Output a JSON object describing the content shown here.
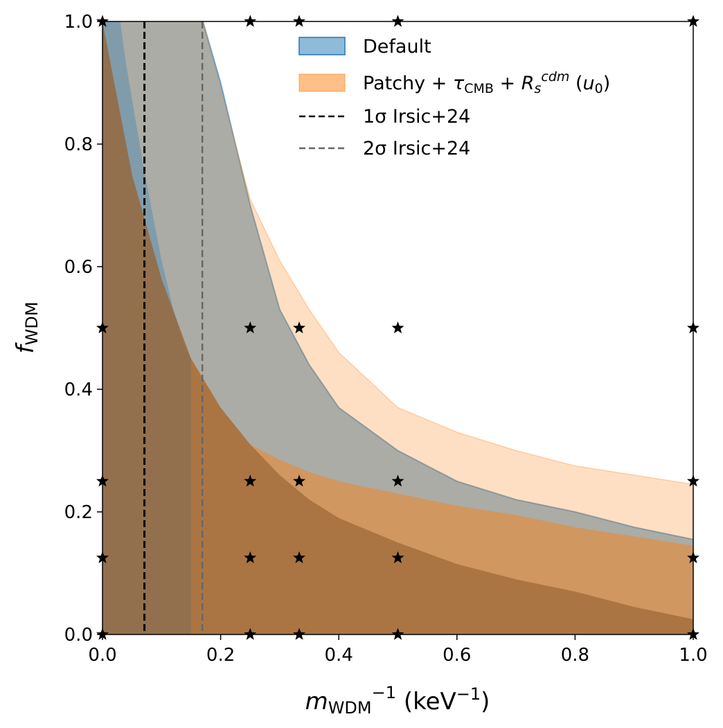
{
  "chart_data": {
    "type": "area",
    "xlim": [
      0,
      1
    ],
    "ylim": [
      0,
      1
    ],
    "xticks": [
      0.0,
      0.2,
      0.4,
      0.6,
      0.8,
      1.0
    ],
    "yticks": [
      0.0,
      0.2,
      0.4,
      0.6,
      0.8,
      1.0
    ],
    "xtick_labels": [
      "0.0",
      "0.2",
      "0.4",
      "0.6",
      "0.8",
      "1.0"
    ],
    "ytick_labels": [
      "0.0",
      "0.2",
      "0.4",
      "0.6",
      "0.8",
      "1.0"
    ],
    "xlabel": {
      "base": "m",
      "sub": "WDM",
      "sup": "−1",
      "unit_pre": " (keV",
      "unit_sup": "−1",
      "unit_post": ")"
    },
    "ylabel": {
      "base": "f",
      "sub": "WDM"
    },
    "grid": false,
    "legend_placement": "top-right",
    "legend": {
      "default": "Default",
      "patchy": {
        "text1": "Patchy + ",
        "tau": "τ",
        "tau_sub": "CMB",
        "plus2": " + ",
        "R": "R",
        "R_sub": "s",
        "R_sup": "cdm",
        "u_pre": " (",
        "u": "u",
        "u_sub": "0",
        "u_post": ")"
      },
      "sigma1": {
        "sigma": "1σ",
        "text": " Irsic+24"
      },
      "sigma2": {
        "sigma": "2σ",
        "text": " Irsic+24"
      }
    },
    "colors": {
      "default_fill": "#1f77b4",
      "default_edge": "#1f77b4",
      "patchy_fill": "#ff7f0e",
      "patchy_edge": "#ff7f0e",
      "sigma1_line": "#000000",
      "sigma2_line": "#666666",
      "markers": "#000000"
    },
    "series": [
      {
        "name": "Default",
        "type": "area",
        "inner_boundary": [
          [
            0.0,
            1.0
          ],
          [
            0.03,
            1.0
          ],
          [
            0.04,
            0.93
          ],
          [
            0.07,
            0.76
          ],
          [
            0.1,
            0.61
          ],
          [
            0.12,
            0.53
          ],
          [
            0.14,
            0.47
          ],
          [
            0.15,
            0.45
          ]
        ],
        "outer_boundary": [
          [
            0.17,
            1.0
          ],
          [
            0.2,
            0.9
          ],
          [
            0.25,
            0.7
          ],
          [
            0.3,
            0.53
          ],
          [
            0.35,
            0.44
          ],
          [
            0.4,
            0.37
          ],
          [
            0.5,
            0.3
          ],
          [
            0.6,
            0.25
          ],
          [
            0.7,
            0.22
          ],
          [
            0.8,
            0.2
          ],
          [
            0.9,
            0.175
          ],
          [
            1.0,
            0.155
          ]
        ]
      },
      {
        "name": "Patchy + τCMB + Rs^cdm (u0)",
        "type": "area",
        "inner_boundary": [
          [
            0.0,
            1.0
          ],
          [
            0.01,
            0.95
          ],
          [
            0.05,
            0.75
          ],
          [
            0.1,
            0.58
          ],
          [
            0.15,
            0.45
          ],
          [
            0.2,
            0.37
          ],
          [
            0.25,
            0.31
          ],
          [
            0.3,
            0.26
          ],
          [
            0.35,
            0.22
          ],
          [
            0.4,
            0.19
          ],
          [
            0.5,
            0.15
          ],
          [
            0.6,
            0.115
          ],
          [
            0.7,
            0.09
          ],
          [
            0.8,
            0.07
          ],
          [
            0.9,
            0.045
          ],
          [
            1.0,
            0.025
          ]
        ],
        "middle_boundary": [
          [
            0.15,
            0.45
          ],
          [
            0.2,
            0.37
          ],
          [
            0.25,
            0.31
          ],
          [
            0.3,
            0.285
          ],
          [
            0.35,
            0.265
          ],
          [
            0.4,
            0.25
          ],
          [
            0.5,
            0.23
          ],
          [
            0.6,
            0.21
          ],
          [
            0.7,
            0.195
          ],
          [
            0.8,
            0.175
          ],
          [
            0.9,
            0.16
          ],
          [
            1.0,
            0.145
          ]
        ],
        "outer_boundary": [
          [
            0.17,
            1.0
          ],
          [
            0.2,
            0.89
          ],
          [
            0.25,
            0.71
          ],
          [
            0.3,
            0.61
          ],
          [
            0.35,
            0.53
          ],
          [
            0.4,
            0.46
          ],
          [
            0.5,
            0.37
          ],
          [
            0.6,
            0.33
          ],
          [
            0.7,
            0.3
          ],
          [
            0.8,
            0.275
          ],
          [
            0.9,
            0.26
          ],
          [
            1.0,
            0.245
          ]
        ]
      },
      {
        "name": "1σ Irsic+24",
        "type": "vline",
        "x": 0.071
      },
      {
        "name": "2σ Irsic+24",
        "type": "vline",
        "x": 0.169
      }
    ],
    "markers": [
      [
        0,
        0
      ],
      [
        0.25,
        0
      ],
      [
        0.333,
        0
      ],
      [
        0.5,
        0
      ],
      [
        1,
        0
      ],
      [
        0,
        0.125
      ],
      [
        0.25,
        0.125
      ],
      [
        0.333,
        0.125
      ],
      [
        0.5,
        0.125
      ],
      [
        1,
        0.125
      ],
      [
        0,
        0.25
      ],
      [
        0.25,
        0.25
      ],
      [
        0.333,
        0.25
      ],
      [
        0.5,
        0.25
      ],
      [
        1,
        0.25
      ],
      [
        0,
        0.5
      ],
      [
        0.25,
        0.5
      ],
      [
        0.333,
        0.5
      ],
      [
        0.5,
        0.5
      ],
      [
        1,
        0.5
      ],
      [
        0,
        1
      ],
      [
        0.25,
        1
      ],
      [
        0.333,
        1
      ],
      [
        0.5,
        1
      ],
      [
        1,
        1
      ]
    ]
  }
}
